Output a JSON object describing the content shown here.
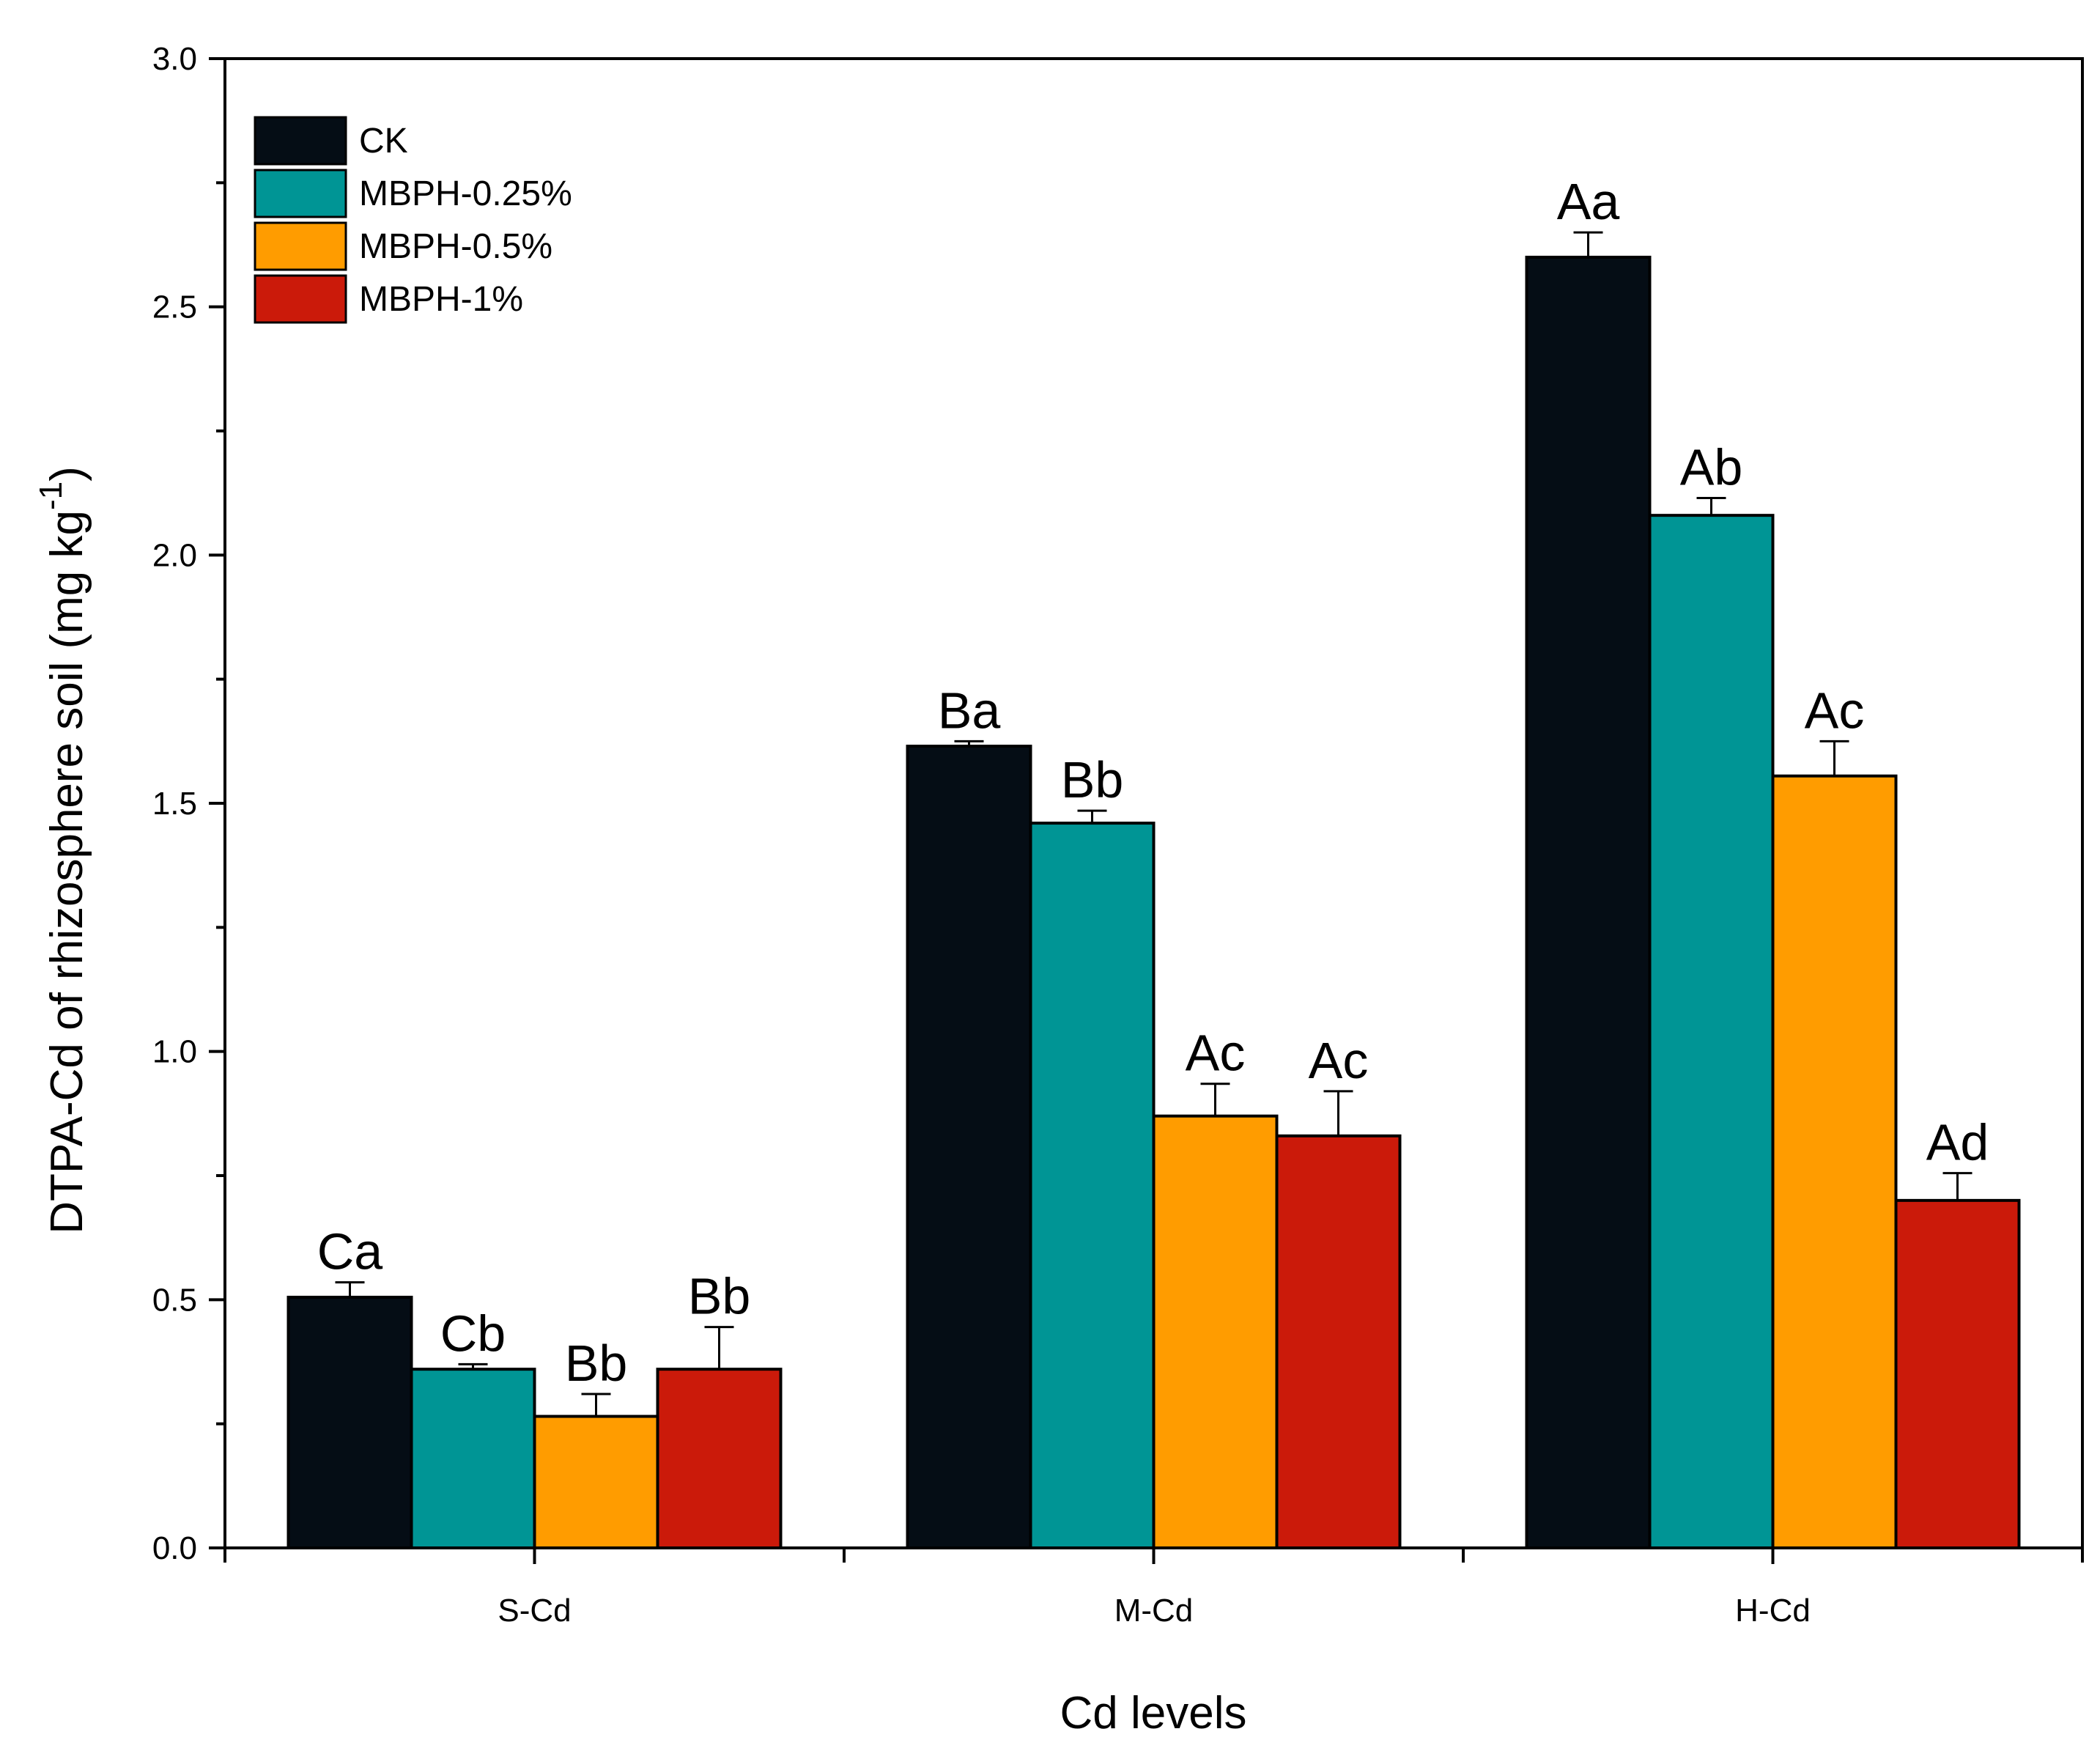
{
  "chart_data": {
    "type": "bar",
    "title": "",
    "xlabel": "Cd levels",
    "ylabel": "DTPA-Cd of rhizosphere soil (mg kg",
    "ylabel_sup": "-1",
    "ylabel_end": ")",
    "ylim": [
      0,
      3.0
    ],
    "yticks": [
      "0.0",
      "0.5",
      "1.0",
      "1.5",
      "2.0",
      "2.5",
      "3.0"
    ],
    "ytick_values": [
      0,
      0.5,
      1.0,
      1.5,
      2.0,
      2.5,
      3.0
    ],
    "categories": [
      "S-Cd",
      "M-Cd",
      "H-Cd"
    ],
    "legend_position": "top-left",
    "series": [
      {
        "name": "CK",
        "color": "#050d15",
        "values": [
          0.505,
          1.615,
          2.6
        ],
        "errors": [
          0.03,
          0.01,
          0.05
        ],
        "labels": [
          "Ca",
          "Ba",
          "Aa"
        ]
      },
      {
        "name": "MBPH-0.25%",
        "color": "#009595",
        "values": [
          0.36,
          1.46,
          2.08
        ],
        "errors": [
          0.01,
          0.025,
          0.035
        ],
        "labels": [
          "Cb",
          "Bb",
          "Ab"
        ]
      },
      {
        "name": "MBPH-0.5%",
        "color": "#ff9c00",
        "values": [
          0.265,
          0.87,
          1.555
        ],
        "errors": [
          0.045,
          0.065,
          0.07
        ],
        "labels": [
          "Bb",
          "Ac",
          "Ac"
        ]
      },
      {
        "name": "MBPH-1%",
        "color": "#cb1a0a",
        "values": [
          0.36,
          0.83,
          0.7
        ],
        "errors": [
          0.085,
          0.09,
          0.055
        ],
        "labels": [
          "Bb",
          "Ac",
          "Ad"
        ]
      }
    ]
  }
}
